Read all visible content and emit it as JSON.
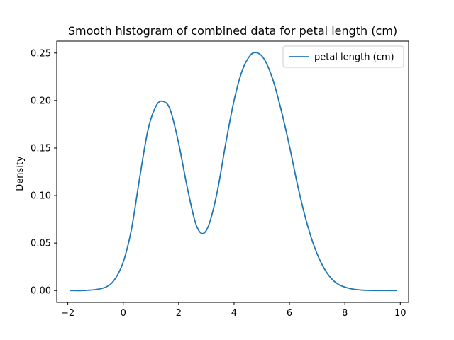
{
  "chart_data": {
    "type": "line",
    "title": "Smooth histogram of combined data for petal length (cm)",
    "xlabel": "",
    "ylabel": "Density",
    "xlim": [
      -2.4,
      10.3
    ],
    "ylim": [
      -0.0125,
      0.2625
    ],
    "xticks": [
      -2,
      0,
      2,
      4,
      6,
      8,
      10
    ],
    "xtick_labels": [
      "−2",
      "0",
      "2",
      "4",
      "6",
      "8",
      "10"
    ],
    "yticks": [
      0.0,
      0.05,
      0.1,
      0.15,
      0.2,
      0.25
    ],
    "ytick_labels": [
      "0.00",
      "0.05",
      "0.10",
      "0.15",
      "0.20",
      "0.25"
    ],
    "grid": false,
    "legend_position": "top-right",
    "series": [
      {
        "name": "petal length (cm)",
        "color": "#1f77b4",
        "x": [
          -1.9,
          -1.5,
          -1.0,
          -0.6,
          -0.3,
          0.0,
          0.3,
          0.6,
          0.9,
          1.2,
          1.45,
          1.7,
          2.0,
          2.3,
          2.6,
          2.85,
          3.1,
          3.4,
          3.7,
          4.0,
          4.3,
          4.6,
          4.85,
          5.1,
          5.4,
          5.7,
          6.0,
          6.3,
          6.6,
          6.9,
          7.2,
          7.5,
          7.8,
          8.2,
          8.6,
          9.2,
          9.85
        ],
        "y": [
          0.0,
          0.0,
          0.001,
          0.004,
          0.012,
          0.03,
          0.065,
          0.12,
          0.17,
          0.195,
          0.199,
          0.19,
          0.155,
          0.11,
          0.072,
          0.06,
          0.07,
          0.105,
          0.155,
          0.2,
          0.232,
          0.248,
          0.25,
          0.243,
          0.222,
          0.19,
          0.152,
          0.11,
          0.074,
          0.046,
          0.026,
          0.013,
          0.006,
          0.002,
          0.0005,
          0.0,
          0.0
        ]
      }
    ]
  }
}
